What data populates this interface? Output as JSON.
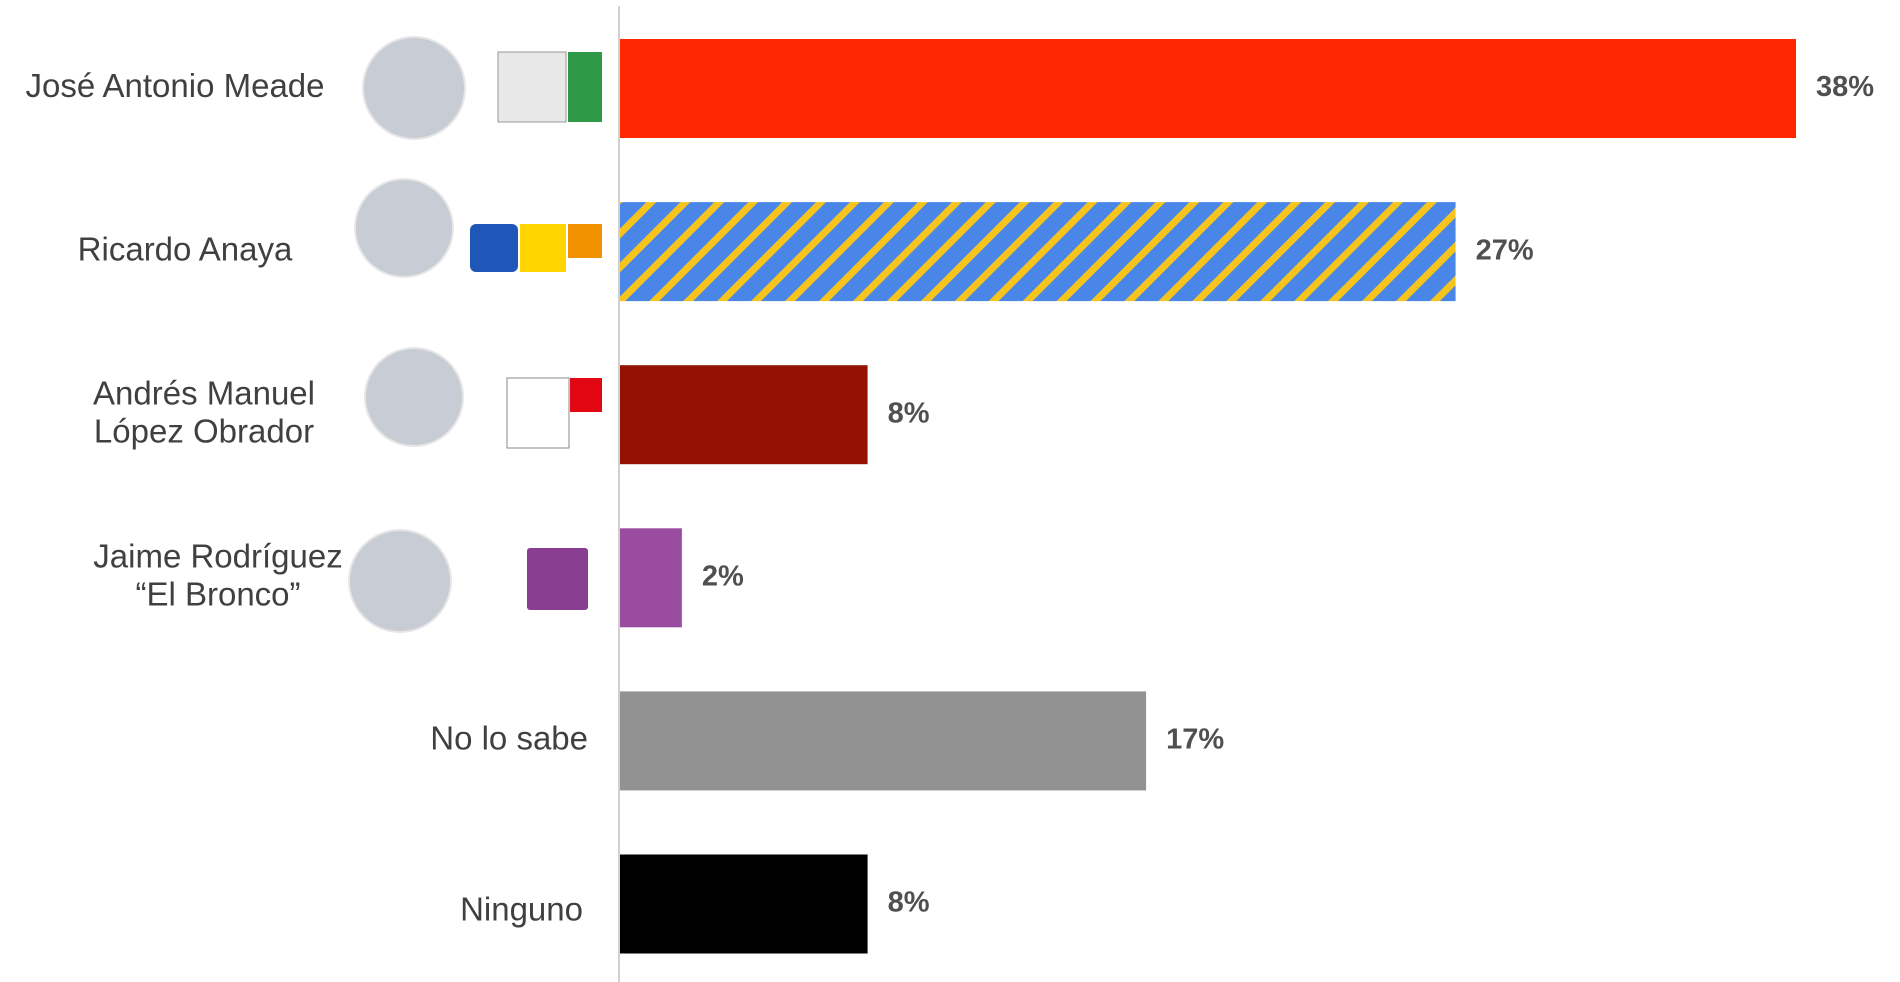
{
  "chart_data": {
    "type": "hbar",
    "categories": [
      [
        "José Antonio Meade"
      ],
      [
        "Ricardo Anaya"
      ],
      [
        "Andrés Manuel",
        "López Obrador"
      ],
      [
        "Jaime Rodríguez",
        "“El Bronco”"
      ],
      [
        "No lo sabe"
      ],
      [
        "Ninguno"
      ]
    ],
    "values": [
      38,
      27,
      8,
      2,
      17,
      8
    ],
    "value_labels": [
      "38%",
      "27%",
      "8%",
      "2%",
      "17%",
      "8%"
    ],
    "colors": [
      "#ff2600",
      [
        "#4a86e8",
        "#f6c41c"
      ],
      "#921100",
      "#9a4da0",
      "#929292",
      "#000000"
    ],
    "xlim": [
      0,
      38
    ]
  }
}
